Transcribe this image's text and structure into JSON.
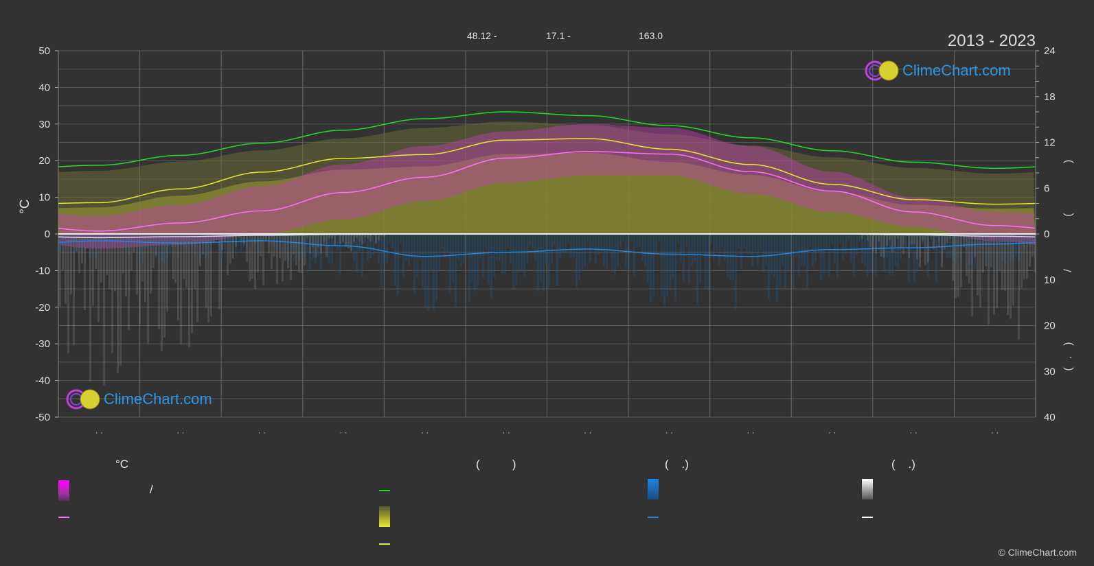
{
  "header": {
    "coords_lat": "48.12 -",
    "coords_lon": "17.1 -",
    "elevation": "163.0",
    "date_range": "2013 - 2023"
  },
  "logo": {
    "text": "ClimeChart.com"
  },
  "copyright": "© ClimeChart.com",
  "legend": {
    "col1_heading": "°C",
    "col2_heading": "(          )",
    "col3_heading": "(    .)",
    "col4_heading": "(    .)",
    "slash": "/",
    "colors": {
      "temp_range": "#e040e0",
      "mean_temp": "#ff70ff",
      "daylight": "#22dd22",
      "sunshine_fill": "#e8e830",
      "sunshine_line": "#e8e830",
      "precip": "#1e88e5",
      "snow": "#e0e0e0"
    }
  },
  "chart_data": {
    "type": "line",
    "y_left": {
      "label": "°C",
      "range": [
        -50,
        50
      ],
      "ticks": [
        "50",
        "40",
        "30",
        "20",
        "10",
        "0",
        "-10",
        "-20",
        "-30",
        "-40",
        "-50"
      ]
    },
    "y_right_top": {
      "label_glyphs": ")  (",
      "range": [
        0,
        24
      ],
      "ticks": [
        "24",
        "18",
        "12",
        "6",
        "0"
      ]
    },
    "y_right_bottom": {
      "label_glyphs": "/  ( . )",
      "range": [
        0,
        40
      ],
      "ticks": [
        "0",
        "10",
        "20",
        "30",
        "40"
      ]
    },
    "x_ticks": [
      "· ·",
      "· ·",
      "· ·",
      "· ·",
      "· ·",
      "· ·",
      "· ·",
      "· ·",
      "· ·",
      "· ·",
      "· ·",
      "· ·"
    ],
    "months": [
      1,
      2,
      3,
      4,
      5,
      6,
      7,
      8,
      9,
      10,
      11,
      12
    ],
    "series": [
      {
        "key": "daylight_hours",
        "axis": "right_top",
        "color": "#22dd22",
        "values": [
          9.0,
          10.3,
          11.9,
          13.6,
          15.1,
          16.0,
          15.5,
          14.2,
          12.6,
          10.9,
          9.4,
          8.6
        ]
      },
      {
        "key": "sunshine_hours",
        "axis": "right_top",
        "color": "#e8e830",
        "values": [
          4.1,
          5.9,
          8.1,
          9.9,
          10.4,
          12.3,
          12.5,
          11.1,
          9.1,
          6.5,
          4.5,
          3.9
        ]
      },
      {
        "key": "mean_temp",
        "axis": "left",
        "color": "#ff70ff",
        "values": [
          0.8,
          3.0,
          6.3,
          11.3,
          15.5,
          20.7,
          22.5,
          21.8,
          17.0,
          11.7,
          6.0,
          2.3
        ]
      },
      {
        "key": "precip_mm",
        "axis": "right_bottom",
        "color": "#1e88e5",
        "values": [
          1.5,
          2.0,
          1.5,
          2.6,
          4.9,
          4.0,
          3.3,
          4.4,
          4.9,
          3.4,
          3.0,
          2.2
        ]
      },
      {
        "key": "snow_mm",
        "axis": "right_bottom",
        "color": "#e0e0e0",
        "values": [
          0.8,
          0.6,
          0.3,
          0.1,
          0.0,
          0.0,
          0.0,
          0.0,
          0.0,
          0.0,
          0.2,
          0.5
        ]
      }
    ],
    "temp_range_band": {
      "max": [
        5,
        8,
        13,
        19,
        24,
        28,
        30,
        29,
        24,
        17,
        10,
        6
      ],
      "min": [
        -4,
        -3,
        0,
        4,
        9,
        14,
        16,
        16,
        11,
        6,
        2,
        -2
      ]
    },
    "grid": true
  }
}
